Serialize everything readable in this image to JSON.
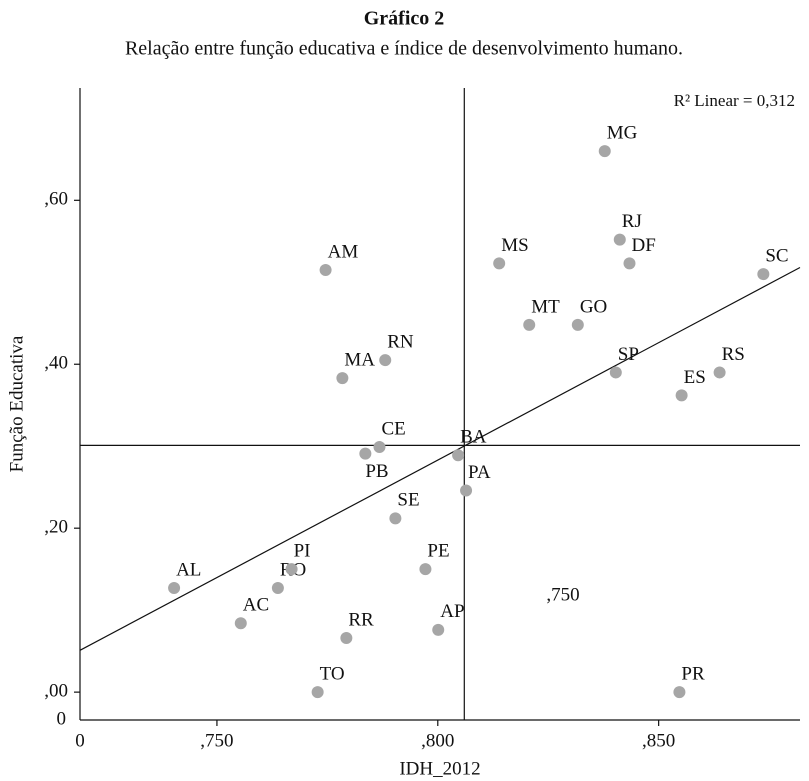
{
  "chart_data": {
    "type": "scatter",
    "title": "Gráfico 2",
    "subtitle": "Relação entre função educativa e índice de desenvolvimento humano.",
    "x_label": "IDH_2012",
    "y_label": "Função Educativa",
    "annotation": "R² Linear = 0,312",
    "center_label": ",750",
    "x_origin_label": "0",
    "y_origin_label": "0",
    "xlim": [
      0.719,
      0.882
    ],
    "ylim": [
      -0.034,
      0.737
    ],
    "xticks": [
      {
        "value": 0.75,
        "label": ",750"
      },
      {
        "value": 0.8,
        "label": ",800"
      },
      {
        "value": 0.85,
        "label": ",850"
      }
    ],
    "yticks": [
      {
        "value": 0,
        "label": ",00"
      },
      {
        "value": 0.2,
        "label": ",20"
      },
      {
        "value": 0.4,
        "label": ",40"
      },
      {
        "value": 0.6,
        "label": ",60"
      }
    ],
    "color": "#a6a6a6",
    "labels": [
      "AL",
      "AC",
      "RO",
      "PI",
      "TO",
      "AM",
      "MA",
      "RN",
      "RR",
      "CE",
      "PB",
      "SE",
      "PE",
      "AP",
      "BA",
      "PA",
      "MS",
      "MT",
      "GO",
      "SP",
      "MG",
      "RJ",
      "DF",
      "SC",
      "RS",
      "ES",
      "PR"
    ],
    "x": [
      0.7403,
      0.7554,
      0.7638,
      0.7669,
      0.7728,
      0.7746,
      0.7784,
      0.7881,
      0.7793,
      0.7868,
      0.7836,
      0.7904,
      0.7972,
      0.8001,
      0.8046,
      0.8064,
      0.8139,
      0.8207,
      0.8317,
      0.8403,
      0.8378,
      0.8412,
      0.8434,
      0.8737,
      0.8638,
      0.8552,
      0.8547
    ],
    "y": [
      0.127,
      0.084,
      0.127,
      0.15,
      0.0,
      0.515,
      0.383,
      0.405,
      0.066,
      0.299,
      0.291,
      0.212,
      0.15,
      0.076,
      0.289,
      0.246,
      0.523,
      0.448,
      0.448,
      0.39,
      0.66,
      0.552,
      0.523,
      0.51,
      0.39,
      0.362,
      0.0
    ],
    "fit_line": {
      "x": [
        0.719,
        0.882
      ],
      "y": [
        0.051,
        0.518
      ]
    },
    "reference_x": 0.806,
    "reference_y": 0.301
  }
}
